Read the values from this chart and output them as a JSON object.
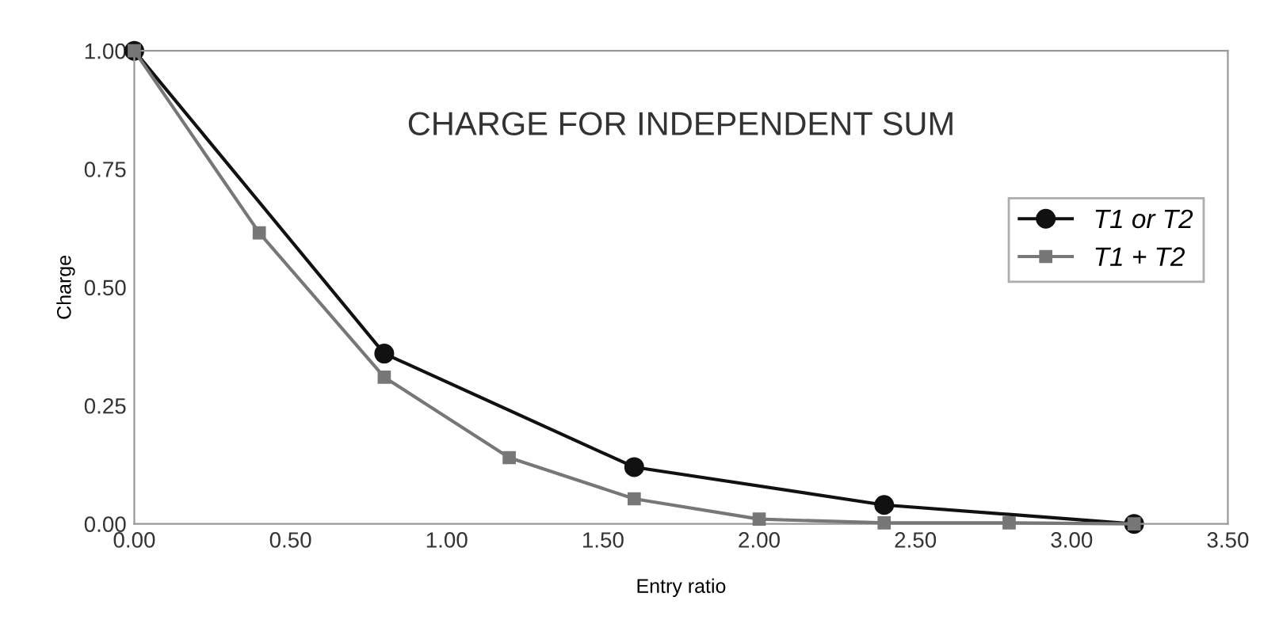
{
  "chart_data": {
    "type": "line",
    "title": "CHARGE FOR INDEPENDENT SUM",
    "xlabel": "Entry ratio",
    "ylabel": "Charge",
    "series": [
      {
        "name": "T1 or T2",
        "color": "#111111",
        "marker": "circle",
        "x": [
          0,
          0.8,
          1.6,
          2.4,
          3.2
        ],
        "values": [
          1.0,
          0.36,
          0.12,
          0.04,
          0.0
        ]
      },
      {
        "name": "T1 + T2",
        "color": "#777777",
        "marker": "square",
        "x": [
          0,
          0.4,
          0.8,
          1.2,
          1.6,
          2.0,
          2.4,
          2.8,
          3.2
        ],
        "values": [
          1.0,
          0.615,
          0.31,
          0.14,
          0.053,
          0.01,
          0.002,
          0.002,
          0.0
        ]
      }
    ],
    "xlim": [
      0,
      3.5
    ],
    "xticks": [
      {
        "value": 0,
        "label": "0.00"
      },
      {
        "value": 0.5,
        "label": "0.50"
      },
      {
        "value": 1.0,
        "label": "1.00"
      },
      {
        "value": 1.5,
        "label": "1.50"
      },
      {
        "value": 2.0,
        "label": "2.00"
      },
      {
        "value": 2.5,
        "label": "2.50"
      },
      {
        "value": 3.0,
        "label": "3.00"
      },
      {
        "value": 3.5,
        "label": "3.50"
      }
    ],
    "ylim": [
      0,
      1.0
    ],
    "yticks": [
      {
        "value": 0,
        "label": "0.00"
      },
      {
        "value": 0.25,
        "label": "0.25"
      },
      {
        "value": 0.5,
        "label": "0.50"
      },
      {
        "value": 0.75,
        "label": "0.75"
      },
      {
        "value": 1.0,
        "label": "1.00"
      }
    ],
    "grid": false,
    "legend": "right",
    "line_style": "solid"
  }
}
